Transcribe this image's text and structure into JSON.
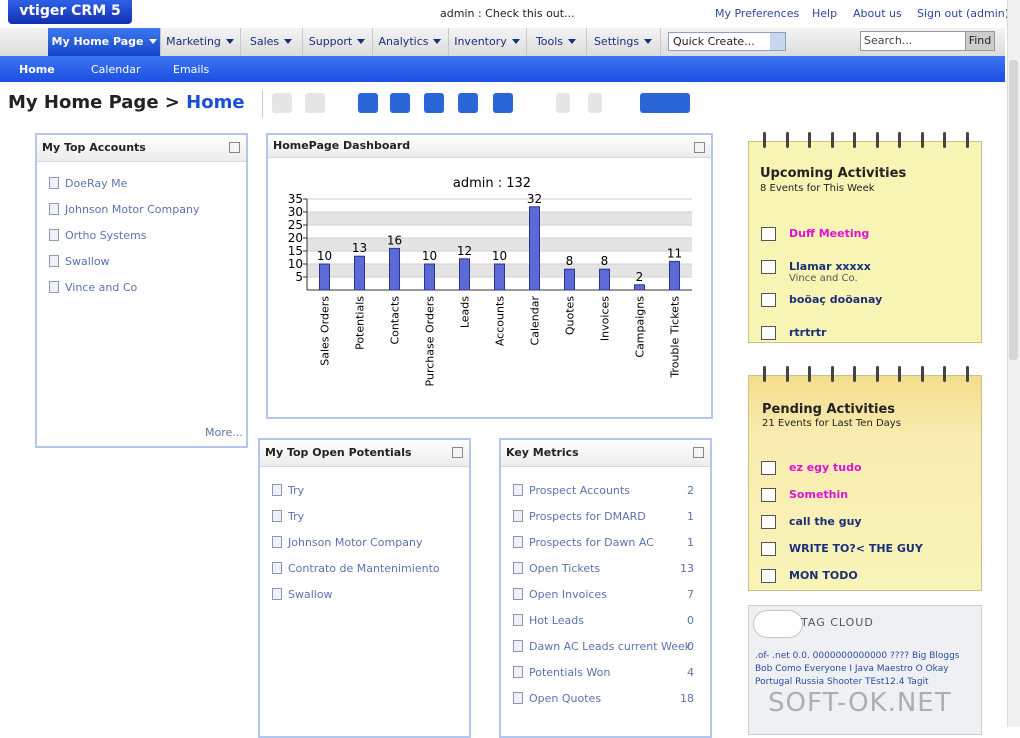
{
  "header": {
    "logo": "vtiger CRM 5",
    "message": "admin : Check this out...",
    "links": [
      "My Preferences",
      "Help",
      "About us",
      "Sign out (admin)"
    ]
  },
  "tabs": [
    "My Home Page",
    "Marketing",
    "Sales",
    "Support",
    "Analytics",
    "Inventory",
    "Tools",
    "Settings"
  ],
  "quick_create": "Quick Create...",
  "search_placeholder": "Search...",
  "find_button": "Find",
  "subtabs": [
    "Home",
    "Calendar",
    "Emails"
  ],
  "breadcrumb": {
    "section": "My Home Page >",
    "page": "Home"
  },
  "top_accounts": {
    "title": "My Top Accounts",
    "items": [
      "DoeRay Me",
      "Johnson Motor Company",
      "Ortho Systems",
      "Swallow",
      "Vince and Co"
    ],
    "more": "More..."
  },
  "chart_data": {
    "type": "bar",
    "panel_title": "HomePage Dashboard",
    "title": "admin : 132",
    "categories": [
      "Sales Orders",
      "Potentials",
      "Contacts",
      "Purchase Orders",
      "Leads",
      "Accounts",
      "Calendar",
      "Quotes",
      "Invoices",
      "Campaigns",
      "Trouble Tickets"
    ],
    "values": [
      10,
      13,
      16,
      10,
      12,
      10,
      32,
      8,
      8,
      2,
      11
    ],
    "color": "#5b6ad6",
    "ylim": [
      0,
      35
    ],
    "yticks": [
      5,
      10,
      15,
      20,
      25,
      30,
      35
    ],
    "grid": true
  },
  "top_potentials": {
    "title": "My Top Open Potentials",
    "items": [
      "Try",
      "Try",
      "Johnson Motor Company",
      "Contrato de Mantenimiento",
      "Swallow"
    ]
  },
  "key_metrics": {
    "title": "Key Metrics",
    "rows": [
      [
        "Prospect Accounts",
        2
      ],
      [
        "Prospects for DMARD",
        1
      ],
      [
        "Prospects for Dawn AC",
        1
      ],
      [
        "Open Tickets",
        13
      ],
      [
        "Open Invoices",
        7
      ],
      [
        "Hot Leads",
        0
      ],
      [
        "Dawn AC Leads current Week",
        0
      ],
      [
        "Potentials Won",
        4
      ],
      [
        "Open Quotes",
        18
      ]
    ]
  },
  "upcoming": {
    "title": "Upcoming Activities",
    "subtitle": "8 Events for This Week",
    "items": [
      {
        "label": "Duff Meeting",
        "color": "#e010d8"
      },
      {
        "label": "Llamar xxxxx",
        "detail": "Vince and Co.",
        "color": "#1a2f7a"
      },
      {
        "label": "boöaç doöanay",
        "color": "#1a2f7a"
      },
      {
        "label": "rtrtrtr",
        "color": "#1a2f7a"
      }
    ]
  },
  "pending": {
    "title": "Pending Activities",
    "subtitle": "21 Events for Last Ten Days",
    "items": [
      {
        "label": "ez egy tudo",
        "color": "#e010d8"
      },
      {
        "label": "Somethin",
        "color": "#e010d8"
      },
      {
        "label": "call the guy",
        "color": "#1a2f7a"
      },
      {
        "label": "WRITE TO?< THE GUY",
        "color": "#1a2f7a"
      },
      {
        "label": "MON TODO",
        "color": "#1a2f7a"
      }
    ]
  },
  "tag_cloud": {
    "title": "TAG CLOUD",
    "tags": ".of- .net 0.0. 0000000000000 ???? Big Bloggs Bob Como Everyone I Java Maestro O Okay Portugal Russia Shooter TEst12.4 Tagit"
  },
  "watermark": "SOFT-OK.NET"
}
